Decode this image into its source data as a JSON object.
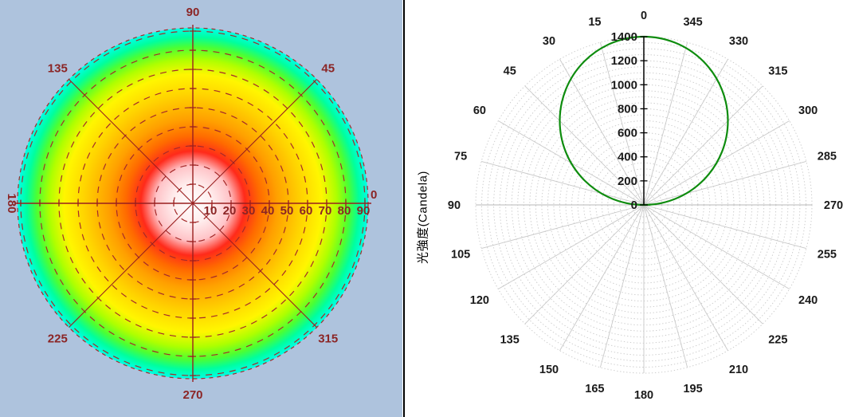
{
  "left_chart": {
    "background_color": "#AEC3DD",
    "label_color": "#8B2525",
    "grid_color": "#A52A2A",
    "axis_color": "#991F1F",
    "angle_labels": [
      "0",
      "45",
      "90",
      "135",
      "180",
      "225",
      "270",
      "315"
    ],
    "radial_labels": [
      "10",
      "20",
      "30",
      "40",
      "50",
      "60",
      "70",
      "80",
      "90"
    ]
  },
  "right_chart": {
    "axis_title": "光強度(Candela)",
    "origin_label": "0",
    "radial_tick_labels": [
      "200",
      "400",
      "600",
      "800",
      "1000",
      "1200",
      "1400"
    ],
    "angle_labels": [
      "0",
      "15",
      "30",
      "45",
      "60",
      "75",
      "90",
      "105",
      "120",
      "135",
      "150",
      "165",
      "180",
      "195",
      "210",
      "225",
      "240",
      "255",
      "270",
      "285",
      "300",
      "315",
      "330",
      "345"
    ],
    "curve_color": "#0E8C0E",
    "grid_circle_color": "#C8C8C8",
    "grid_spoke_color": "#C9C9C9",
    "axis_color": "#000000",
    "label_color": "#1A1A1A"
  },
  "chart_data": [
    {
      "type": "heatmap",
      "projection": "polar",
      "description": "False-color angular intensity map: maximum at center (white) decreasing smoothly to minimum at rim (black)",
      "angle_ticks_deg": [
        0,
        45,
        90,
        135,
        180,
        225,
        270,
        315
      ],
      "radial_ticks": [
        10,
        20,
        30,
        40,
        50,
        60,
        70,
        80,
        90
      ],
      "radial_range": [
        0,
        90
      ],
      "grid": {
        "circle_step": 10,
        "spoke_step_deg": 45,
        "style": "dashed dark red"
      },
      "color_scale_center_to_edge": [
        [
          "#FFFFFF",
          0
        ],
        [
          "#FFEDED",
          8
        ],
        [
          "#FFC4C8",
          15
        ],
        [
          "#FF2A1A",
          21
        ],
        [
          "#FF6A00",
          27
        ],
        [
          "#FFA000",
          34
        ],
        [
          "#FFD400",
          44
        ],
        [
          "#FFF600",
          52
        ],
        [
          "#AEFF00",
          58
        ],
        [
          "#4CFF33",
          63
        ],
        [
          "#00FF9E",
          67
        ],
        [
          "#00FFFF",
          72
        ],
        [
          "#00A6FF",
          77
        ],
        [
          "#2B4BFF",
          81
        ],
        [
          "#7A1FFF",
          85
        ],
        [
          "#C312D8",
          89
        ],
        [
          "#8A0D93",
          93
        ],
        [
          "#4A0550",
          96
        ],
        [
          "#1A001E",
          99
        ],
        [
          "#000000",
          100
        ]
      ]
    },
    {
      "type": "line",
      "projection": "polar",
      "angle_zero_position": "top",
      "angles_deg": [
        0,
        15,
        30,
        45,
        60,
        75,
        90,
        105,
        120,
        135,
        150,
        165,
        180,
        195,
        210,
        225,
        240,
        255,
        270,
        285,
        300,
        315,
        330,
        345
      ],
      "values_candela": [
        1400,
        1352,
        1212,
        990,
        700,
        362,
        0,
        0,
        0,
        0,
        0,
        0,
        0,
        0,
        0,
        0,
        0,
        0,
        0,
        362,
        700,
        990,
        1212,
        1352
      ],
      "r_axis": {
        "min": 0,
        "max": 1400,
        "tick_step": 200,
        "label": "光強度(Candela)"
      },
      "grid": {
        "circle_step": 50,
        "spoke_step_deg": 15,
        "style": "dotted light gray"
      },
      "line_color": "#0E8C0E"
    }
  ]
}
